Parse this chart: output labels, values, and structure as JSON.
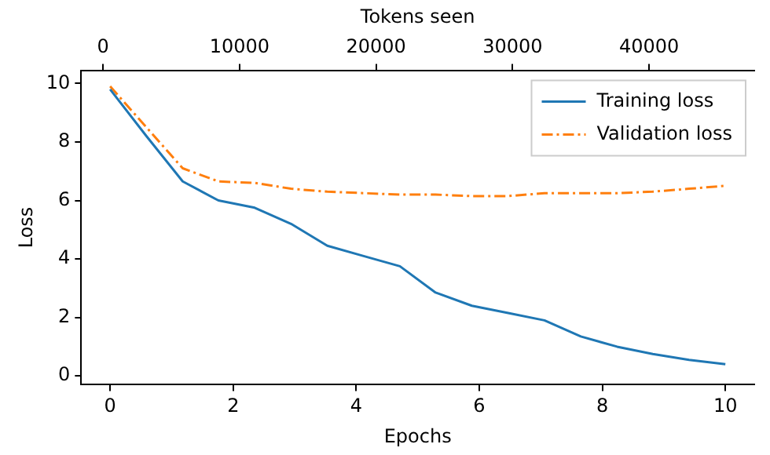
{
  "chart_data": {
    "type": "line",
    "xlabel": "Epochs",
    "ylabel": "Loss",
    "x2label": "Tokens seen",
    "x": [
      0,
      0.59,
      1.18,
      1.76,
      2.35,
      2.94,
      3.53,
      4.12,
      4.71,
      5.29,
      5.88,
      6.47,
      7.06,
      7.65,
      8.24,
      8.82,
      9.41,
      10
    ],
    "series": [
      {
        "name": "Training loss",
        "color": "#1f77b4",
        "line_style": "solid",
        "values": [
          9.8,
          8.2,
          6.65,
          6.0,
          5.75,
          5.2,
          4.45,
          4.1,
          3.75,
          2.85,
          2.4,
          2.15,
          1.9,
          1.35,
          1.0,
          0.75,
          0.55,
          0.4
        ]
      },
      {
        "name": "Validation loss",
        "color": "#ff7f0e",
        "line_style": "dashdot",
        "values": [
          9.9,
          8.5,
          7.1,
          6.65,
          6.6,
          6.4,
          6.3,
          6.25,
          6.2,
          6.2,
          6.15,
          6.15,
          6.25,
          6.25,
          6.25,
          6.3,
          6.4,
          6.5
        ]
      }
    ],
    "xlim": [
      -0.47,
      10.47
    ],
    "xticks": [
      0,
      2,
      4,
      6,
      8,
      10
    ],
    "x2lim": [
      -1600,
      47700
    ],
    "x2ticks": [
      0,
      10000,
      20000,
      30000,
      40000
    ],
    "ylim": [
      -0.3,
      10.45
    ],
    "yticks": [
      0,
      2,
      4,
      6,
      8,
      10
    ],
    "grid": false,
    "legend": "top right",
    "marker": "none"
  }
}
